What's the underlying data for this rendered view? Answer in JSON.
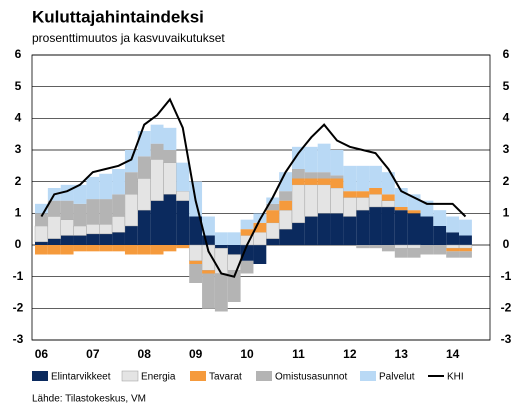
{
  "chart_data": {
    "type": "bar",
    "title": "Kuluttajahintaindeksi",
    "subtitle": "prosenttimuutos ja kasvuvaikutukset",
    "source": "Lähde: Tilastokeskus, VM",
    "categories": [
      "06",
      null,
      null,
      null,
      "07",
      null,
      null,
      null,
      "08",
      null,
      null,
      null,
      "09",
      null,
      null,
      null,
      "10",
      null,
      null,
      null,
      "11",
      null,
      null,
      null,
      "12",
      null,
      null,
      null,
      "13",
      null,
      null,
      null,
      "14",
      null
    ],
    "ylim": [
      -3,
      6
    ],
    "yticks": [
      -3,
      -2,
      -1,
      0,
      1,
      2,
      3,
      4,
      5,
      6
    ],
    "grid": true,
    "stacked": true,
    "series": [
      {
        "name": "Elintarvikkeet",
        "color": "#0b2a5e",
        "type": "bar",
        "values": [
          0.1,
          0.2,
          0.3,
          0.3,
          0.35,
          0.35,
          0.4,
          0.6,
          1.1,
          1.4,
          1.6,
          1.4,
          0.9,
          0.3,
          -0.1,
          -0.3,
          -0.5,
          -0.6,
          0.2,
          0.5,
          0.7,
          0.9,
          1.0,
          1.0,
          0.9,
          1.1,
          1.2,
          1.2,
          1.1,
          1.0,
          0.9,
          0.6,
          0.4,
          0.3
        ]
      },
      {
        "name": "Energia",
        "color": "#e4e4e4",
        "type": "bar",
        "values": [
          0.5,
          0.7,
          0.5,
          0.3,
          0.3,
          0.3,
          0.5,
          1.0,
          1.0,
          1.3,
          1.0,
          0.3,
          -0.5,
          -0.8,
          -0.8,
          -0.5,
          0.3,
          0.4,
          0.5,
          0.6,
          1.2,
          1.0,
          0.9,
          0.8,
          0.6,
          0.4,
          0.4,
          0.2,
          -0.1,
          -0.1,
          0.0,
          0.0,
          -0.1,
          -0.1
        ]
      },
      {
        "name": "Tavarat",
        "color": "#f59a3c",
        "type": "bar",
        "values": [
          -0.3,
          -0.3,
          -0.3,
          -0.2,
          -0.2,
          -0.2,
          -0.2,
          -0.3,
          -0.3,
          -0.3,
          -0.2,
          -0.1,
          -0.1,
          -0.1,
          0.0,
          0.0,
          0.2,
          0.3,
          0.4,
          0.3,
          0.2,
          0.2,
          0.2,
          0.3,
          0.2,
          0.2,
          0.2,
          0.2,
          0.1,
          0.1,
          0.0,
          0.0,
          -0.1,
          -0.1
        ]
      },
      {
        "name": "Omistusasunnot",
        "color": "#b4b4b4",
        "type": "bar",
        "values": [
          0.4,
          0.5,
          0.6,
          0.7,
          0.8,
          0.8,
          0.7,
          0.7,
          0.7,
          0.5,
          0.4,
          0.0,
          -0.6,
          -1.1,
          -1.2,
          -1.0,
          -0.4,
          0.0,
          0.2,
          0.3,
          0.3,
          0.2,
          0.2,
          0.1,
          0.0,
          -0.1,
          -0.1,
          -0.2,
          -0.3,
          -0.3,
          -0.3,
          -0.3,
          -0.2,
          -0.2
        ]
      },
      {
        "name": "Palvelut",
        "color": "#b9d9f5",
        "type": "bar",
        "values": [
          0.3,
          0.4,
          0.5,
          0.6,
          0.7,
          0.8,
          0.8,
          0.7,
          0.8,
          0.6,
          0.7,
          0.9,
          1.1,
          0.6,
          0.4,
          0.4,
          0.3,
          0.3,
          0.2,
          0.6,
          0.7,
          0.8,
          0.9,
          0.8,
          0.8,
          0.8,
          0.7,
          0.7,
          0.6,
          0.5,
          0.5,
          0.5,
          0.5,
          0.5
        ]
      },
      {
        "name": "KHI",
        "color": "#000000",
        "type": "line",
        "values": [
          0.9,
          1.6,
          1.7,
          1.9,
          2.3,
          2.4,
          2.5,
          2.7,
          3.8,
          4.1,
          4.6,
          3.7,
          1.4,
          -0.2,
          -0.9,
          -1.0,
          0.0,
          0.8,
          1.5,
          2.3,
          2.9,
          3.4,
          3.8,
          3.3,
          3.1,
          3.0,
          2.9,
          2.4,
          1.7,
          1.5,
          1.3,
          1.3,
          1.3,
          0.9
        ]
      }
    ]
  }
}
